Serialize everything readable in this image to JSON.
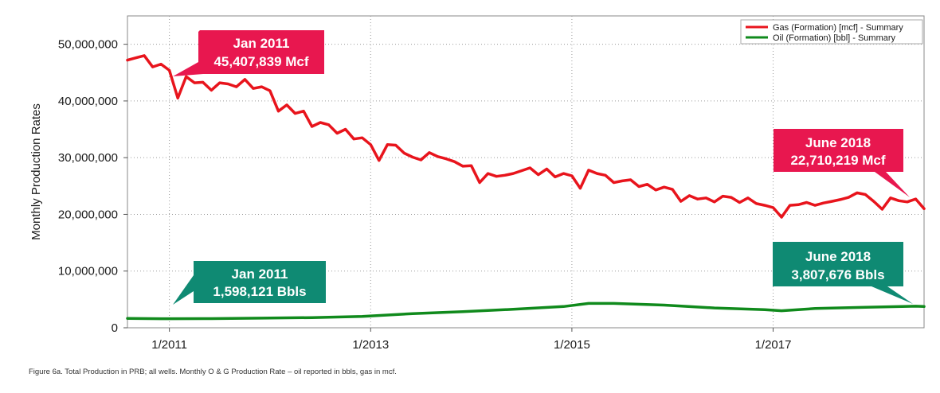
{
  "chart_data": {
    "type": "line",
    "ylabel": "Monthly Production Rates",
    "xlabel": "",
    "ylim": [
      0,
      55000000
    ],
    "xlim": [
      "2010-08",
      "2018-07"
    ],
    "y_ticks": [
      0,
      10000000,
      20000000,
      30000000,
      40000000,
      50000000
    ],
    "y_tick_labels": [
      "0",
      "10,000,000",
      "20,000,000",
      "30,000,000",
      "40,000,000",
      "50,000,000"
    ],
    "x_ticks": [
      "2011-01",
      "2013-01",
      "2015-01",
      "2017-01"
    ],
    "x_tick_labels": [
      "1/2011",
      "1/2013",
      "1/2015",
      "1/2017"
    ],
    "grid": true,
    "legend_position": "top-right",
    "series": [
      {
        "name": "Gas (Formation) [mcf] - Summary",
        "color": "#e8141c",
        "points": [
          [
            "2010-08",
            47200000
          ],
          [
            "2010-09",
            47600000
          ],
          [
            "2010-10",
            48000000
          ],
          [
            "2010-11",
            46000000
          ],
          [
            "2010-12",
            46500000
          ],
          [
            "2011-01",
            45407839
          ],
          [
            "2011-02",
            40500000
          ],
          [
            "2011-03",
            44300000
          ],
          [
            "2011-04",
            43200000
          ],
          [
            "2011-05",
            43300000
          ],
          [
            "2011-06",
            41900000
          ],
          [
            "2011-07",
            43200000
          ],
          [
            "2011-08",
            43000000
          ],
          [
            "2011-09",
            42500000
          ],
          [
            "2011-10",
            43800000
          ],
          [
            "2011-11",
            42200000
          ],
          [
            "2011-12",
            42500000
          ],
          [
            "2012-01",
            41800000
          ],
          [
            "2012-02",
            38200000
          ],
          [
            "2012-03",
            39300000
          ],
          [
            "2012-04",
            37800000
          ],
          [
            "2012-05",
            38200000
          ],
          [
            "2012-06",
            35500000
          ],
          [
            "2012-07",
            36200000
          ],
          [
            "2012-08",
            35800000
          ],
          [
            "2012-09",
            34300000
          ],
          [
            "2012-10",
            35000000
          ],
          [
            "2012-11",
            33300000
          ],
          [
            "2012-12",
            33500000
          ],
          [
            "2013-01",
            32300000
          ],
          [
            "2013-02",
            29500000
          ],
          [
            "2013-03",
            32300000
          ],
          [
            "2013-04",
            32200000
          ],
          [
            "2013-05",
            30800000
          ],
          [
            "2013-06",
            30100000
          ],
          [
            "2013-07",
            29600000
          ],
          [
            "2013-08",
            30900000
          ],
          [
            "2013-09",
            30200000
          ],
          [
            "2013-10",
            29800000
          ],
          [
            "2013-11",
            29300000
          ],
          [
            "2013-12",
            28500000
          ],
          [
            "2014-01",
            28600000
          ],
          [
            "2014-02",
            25600000
          ],
          [
            "2014-03",
            27200000
          ],
          [
            "2014-04",
            26700000
          ],
          [
            "2014-05",
            26900000
          ],
          [
            "2014-06",
            27200000
          ],
          [
            "2014-07",
            27700000
          ],
          [
            "2014-08",
            28200000
          ],
          [
            "2014-09",
            27000000
          ],
          [
            "2014-10",
            28000000
          ],
          [
            "2014-11",
            26600000
          ],
          [
            "2014-12",
            27200000
          ],
          [
            "2015-01",
            26800000
          ],
          [
            "2015-02",
            24600000
          ],
          [
            "2015-03",
            27800000
          ],
          [
            "2015-04",
            27200000
          ],
          [
            "2015-05",
            26900000
          ],
          [
            "2015-06",
            25600000
          ],
          [
            "2015-07",
            25900000
          ],
          [
            "2015-08",
            26100000
          ],
          [
            "2015-09",
            24900000
          ],
          [
            "2015-10",
            25300000
          ],
          [
            "2015-11",
            24300000
          ],
          [
            "2015-12",
            24800000
          ],
          [
            "2016-01",
            24400000
          ],
          [
            "2016-02",
            22300000
          ],
          [
            "2016-03",
            23300000
          ],
          [
            "2016-04",
            22700000
          ],
          [
            "2016-05",
            22900000
          ],
          [
            "2016-06",
            22200000
          ],
          [
            "2016-07",
            23200000
          ],
          [
            "2016-08",
            23000000
          ],
          [
            "2016-09",
            22100000
          ],
          [
            "2016-10",
            22900000
          ],
          [
            "2016-11",
            21900000
          ],
          [
            "2016-12",
            21600000
          ],
          [
            "2017-01",
            21200000
          ],
          [
            "2017-02",
            19500000
          ],
          [
            "2017-03",
            21600000
          ],
          [
            "2017-04",
            21700000
          ],
          [
            "2017-05",
            22100000
          ],
          [
            "2017-06",
            21600000
          ],
          [
            "2017-07",
            22000000
          ],
          [
            "2017-08",
            22300000
          ],
          [
            "2017-09",
            22600000
          ],
          [
            "2017-10",
            23000000
          ],
          [
            "2017-11",
            23800000
          ],
          [
            "2017-12",
            23500000
          ],
          [
            "2018-01",
            22300000
          ],
          [
            "2018-02",
            20900000
          ],
          [
            "2018-03",
            22900000
          ],
          [
            "2018-04",
            22400000
          ],
          [
            "2018-05",
            22200000
          ],
          [
            "2018-06",
            22710219
          ],
          [
            "2018-07",
            21000000
          ]
        ]
      },
      {
        "name": "Oil (Formation) [bbl] - Summary",
        "color": "#108a1c",
        "points": [
          [
            "2010-08",
            1650000
          ],
          [
            "2010-12",
            1600000
          ],
          [
            "2011-01",
            1598121
          ],
          [
            "2011-06",
            1620000
          ],
          [
            "2011-12",
            1700000
          ],
          [
            "2012-06",
            1800000
          ],
          [
            "2012-12",
            2000000
          ],
          [
            "2013-06",
            2500000
          ],
          [
            "2013-12",
            2850000
          ],
          [
            "2014-06",
            3250000
          ],
          [
            "2014-12",
            3750000
          ],
          [
            "2015-03",
            4300000
          ],
          [
            "2015-06",
            4300000
          ],
          [
            "2015-12",
            4000000
          ],
          [
            "2016-06",
            3500000
          ],
          [
            "2016-12",
            3200000
          ],
          [
            "2017-02",
            3000000
          ],
          [
            "2017-06",
            3400000
          ],
          [
            "2017-12",
            3600000
          ],
          [
            "2018-06",
            3807676
          ],
          [
            "2018-07",
            3750000
          ]
        ]
      }
    ],
    "annotations": [
      {
        "line1": "Jan 2011",
        "line2": "45,407,839 Mcf",
        "color": "#e8174f"
      },
      {
        "line1": "June 2018",
        "line2": "22,710,219 Mcf",
        "color": "#e8174f"
      },
      {
        "line1": "Jan 2011",
        "line2": "1,598,121 Bbls",
        "color": "#0f8a73"
      },
      {
        "line1": "June 2018",
        "line2": "3,807,676 Bbls",
        "color": "#0f8a73"
      }
    ]
  },
  "caption": "Figure 6a. Total Production in PRB; all wells. Monthly O & G Production Rate – oil reported in bbls, gas in mcf."
}
